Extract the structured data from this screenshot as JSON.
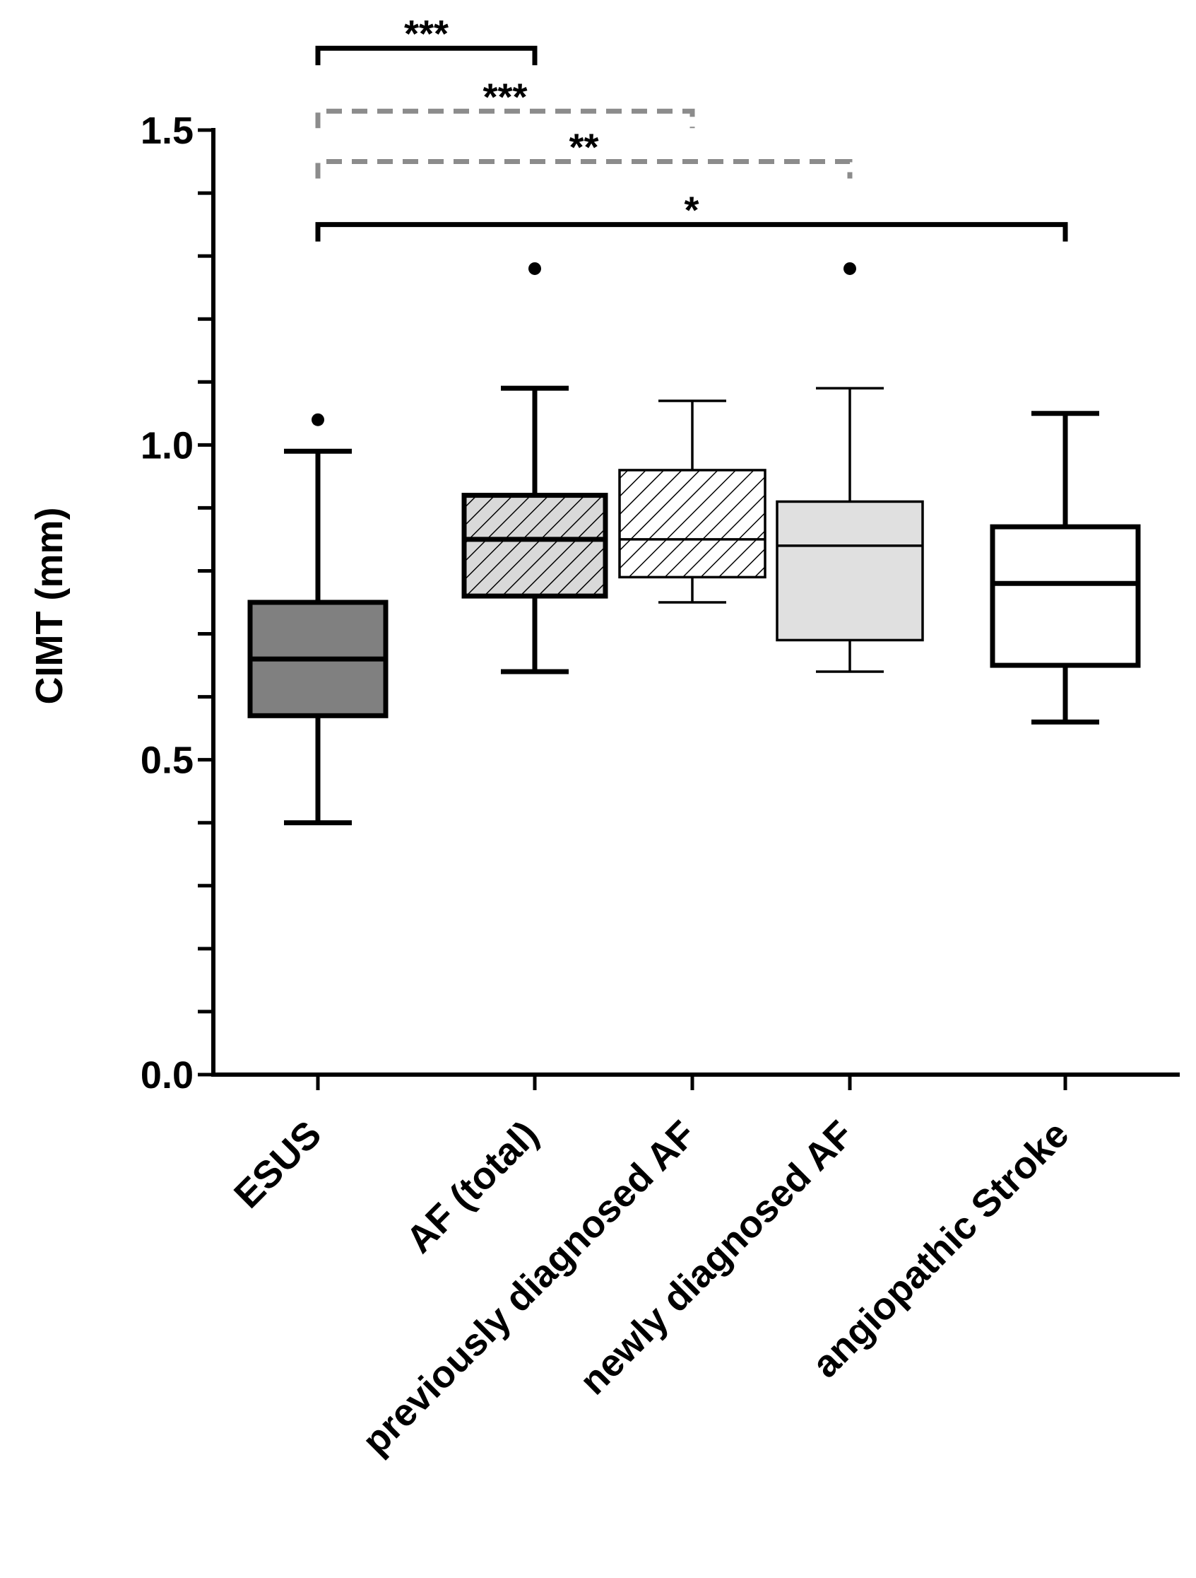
{
  "chart_data": {
    "type": "box",
    "ylabel": "CIMT (mm)",
    "ylim": [
      0,
      1.5
    ],
    "yticks": [
      {
        "value": 0.0,
        "label": "0.0"
      },
      {
        "value": 0.5,
        "label": "0.5"
      },
      {
        "value": 1.0,
        "label": "1.0"
      },
      {
        "value": 1.5,
        "label": "1.5"
      }
    ],
    "minor_tick_step": 0.1,
    "categories": [
      "ESUS",
      "AF (total)",
      "previously diagnosed AF",
      "newly diagnosed AF",
      "angiopathic Stroke"
    ],
    "boxes": [
      {
        "name": "ESUS",
        "whisker_low": 0.4,
        "q1": 0.57,
        "median": 0.66,
        "q3": 0.75,
        "whisker_high": 0.99,
        "outliers": [
          1.04
        ],
        "fill": "#808080",
        "pattern": "none",
        "bold": true
      },
      {
        "name": "AF (total)",
        "whisker_low": 0.64,
        "q1": 0.76,
        "median": 0.85,
        "q3": 0.92,
        "whisker_high": 1.09,
        "outliers": [
          1.28
        ],
        "fill": "#d9d9d9",
        "pattern": "hatch",
        "bold": true
      },
      {
        "name": "previously diagnosed AF",
        "whisker_low": 0.75,
        "q1": 0.79,
        "median": 0.85,
        "q3": 0.96,
        "whisker_high": 1.07,
        "outliers": [],
        "fill": "#ffffff",
        "pattern": "hatch",
        "bold": false
      },
      {
        "name": "newly diagnosed AF",
        "whisker_low": 0.64,
        "q1": 0.69,
        "median": 0.84,
        "q3": 0.91,
        "whisker_high": 1.09,
        "outliers": [
          1.28
        ],
        "fill": "#e0e0e0",
        "pattern": "none",
        "bold": false
      },
      {
        "name": "angiopathic Stroke",
        "whisker_low": 0.56,
        "q1": 0.65,
        "median": 0.78,
        "q3": 0.87,
        "whisker_high": 1.05,
        "outliers": [],
        "fill": "#ffffff",
        "pattern": "none",
        "bold": true
      }
    ],
    "significance": [
      {
        "from": "ESUS",
        "to": "AF (total)",
        "label": "***",
        "style": "solid",
        "color": "#000000",
        "level": 1.63
      },
      {
        "from": "ESUS",
        "to": "previously diagnosed AF",
        "label": "***",
        "style": "dashed",
        "color": "#8c8c8c",
        "level": 1.53
      },
      {
        "from": "ESUS",
        "to": "newly diagnosed AF",
        "label": "**",
        "style": "dashed",
        "color": "#8c8c8c",
        "level": 1.45
      },
      {
        "from": "ESUS",
        "to": "angiopathic Stroke",
        "label": "*",
        "style": "solid",
        "color": "#000000",
        "level": 1.35
      }
    ]
  }
}
